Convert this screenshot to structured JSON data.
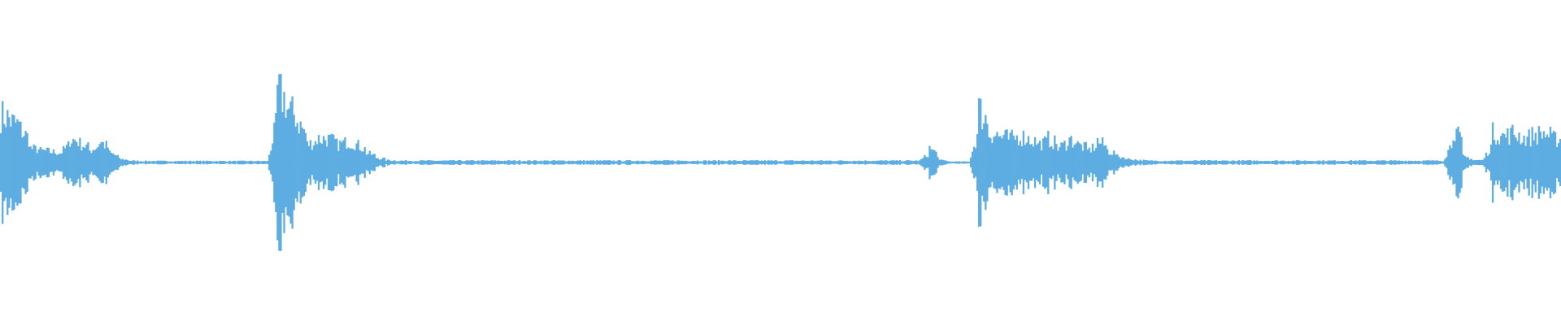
{
  "chart_data": {
    "type": "area",
    "ylim": [
      -1,
      1
    ],
    "grid": false,
    "legend": "none",
    "color": "#5dade2",
    "values": [
      0.4,
      0.35,
      0.28,
      0.12,
      0.1,
      0.09,
      0.08,
      0.2,
      0.16,
      0.1,
      0.18,
      0.08,
      0.03,
      0.015,
      0.012,
      0.012,
      0.012,
      0.012,
      0.012,
      0.012,
      0.012,
      0.012,
      0.012,
      0.012,
      0.012,
      0.012,
      0.012,
      0.012,
      0.6,
      0.45,
      0.35,
      0.15,
      0.2,
      0.2,
      0.15,
      0.18,
      0.15,
      0.08,
      0.04,
      0.02,
      0.015,
      0.015,
      0.015,
      0.015,
      0.015,
      0.015,
      0.015,
      0.015,
      0.015,
      0.015,
      0.015,
      0.015,
      0.015,
      0.015,
      0.015,
      0.015,
      0.015,
      0.015,
      0.015,
      0.015,
      0.015,
      0.015,
      0.015,
      0.015,
      0.015,
      0.015,
      0.015,
      0.015,
      0.015,
      0.015,
      0.015,
      0.015,
      0.015,
      0.015,
      0.015,
      0.015,
      0.015,
      0.015,
      0.015,
      0.015,
      0.015,
      0.015,
      0.015,
      0.015,
      0.015,
      0.015,
      0.015,
      0.015,
      0.015,
      0.015,
      0.015,
      0.015,
      0.015,
      0.015,
      0.12,
      0.02,
      0.008,
      0.008,
      0.008,
      0.45,
      0.25,
      0.22,
      0.2,
      0.22,
      0.2,
      0.15,
      0.2,
      0.12,
      0.2,
      0.15,
      0.1,
      0.18,
      0.1,
      0.05,
      0.03,
      0.02,
      0.015,
      0.015,
      0.015,
      0.015,
      0.015,
      0.015,
      0.015,
      0.015,
      0.015,
      0.015,
      0.015,
      0.015,
      0.015,
      0.015,
      0.015,
      0.015,
      0.015,
      0.015,
      0.015,
      0.015,
      0.015,
      0.015,
      0.015,
      0.015,
      0.015,
      0.015,
      0.015,
      0.015,
      0.015,
      0.015,
      0.015,
      0.3,
      0.05,
      0.02,
      0.02,
      0.25,
      0.22,
      0.25,
      0.2,
      0.23,
      0.25,
      0.2
    ]
  }
}
